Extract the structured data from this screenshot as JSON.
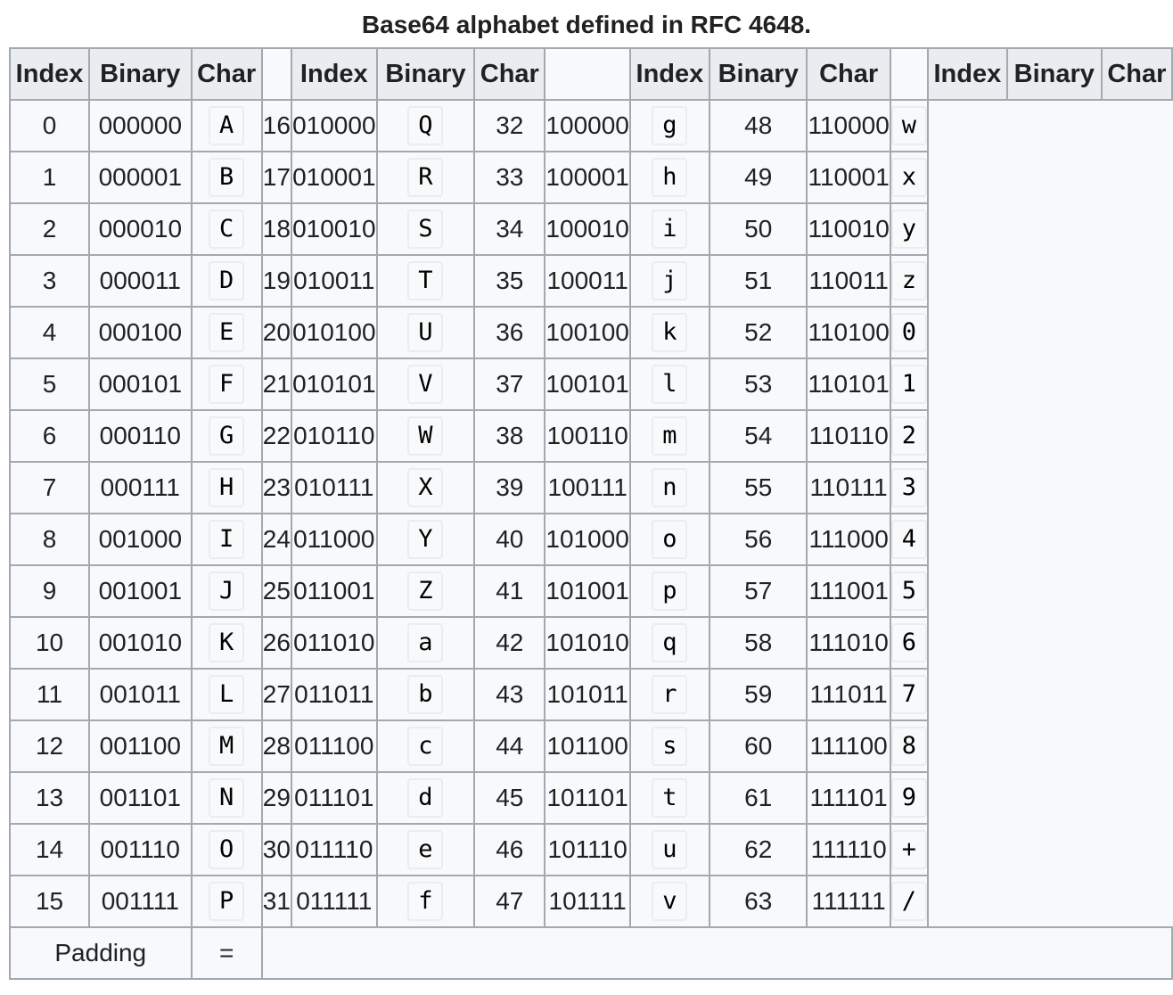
{
  "caption": "Base64 alphabet defined in RFC 4648.",
  "headers": {
    "index": "Index",
    "binary": "Binary",
    "char": "Char"
  },
  "rows": [
    [
      [
        "0",
        "000000",
        "A"
      ],
      [
        "16",
        "010000",
        "Q"
      ],
      [
        "32",
        "100000",
        "g"
      ],
      [
        "48",
        "110000",
        "w"
      ]
    ],
    [
      [
        "1",
        "000001",
        "B"
      ],
      [
        "17",
        "010001",
        "R"
      ],
      [
        "33",
        "100001",
        "h"
      ],
      [
        "49",
        "110001",
        "x"
      ]
    ],
    [
      [
        "2",
        "000010",
        "C"
      ],
      [
        "18",
        "010010",
        "S"
      ],
      [
        "34",
        "100010",
        "i"
      ],
      [
        "50",
        "110010",
        "y"
      ]
    ],
    [
      [
        "3",
        "000011",
        "D"
      ],
      [
        "19",
        "010011",
        "T"
      ],
      [
        "35",
        "100011",
        "j"
      ],
      [
        "51",
        "110011",
        "z"
      ]
    ],
    [
      [
        "4",
        "000100",
        "E"
      ],
      [
        "20",
        "010100",
        "U"
      ],
      [
        "36",
        "100100",
        "k"
      ],
      [
        "52",
        "110100",
        "0"
      ]
    ],
    [
      [
        "5",
        "000101",
        "F"
      ],
      [
        "21",
        "010101",
        "V"
      ],
      [
        "37",
        "100101",
        "l"
      ],
      [
        "53",
        "110101",
        "1"
      ]
    ],
    [
      [
        "6",
        "000110",
        "G"
      ],
      [
        "22",
        "010110",
        "W"
      ],
      [
        "38",
        "100110",
        "m"
      ],
      [
        "54",
        "110110",
        "2"
      ]
    ],
    [
      [
        "7",
        "000111",
        "H"
      ],
      [
        "23",
        "010111",
        "X"
      ],
      [
        "39",
        "100111",
        "n"
      ],
      [
        "55",
        "110111",
        "3"
      ]
    ],
    [
      [
        "8",
        "001000",
        "I"
      ],
      [
        "24",
        "011000",
        "Y"
      ],
      [
        "40",
        "101000",
        "o"
      ],
      [
        "56",
        "111000",
        "4"
      ]
    ],
    [
      [
        "9",
        "001001",
        "J"
      ],
      [
        "25",
        "011001",
        "Z"
      ],
      [
        "41",
        "101001",
        "p"
      ],
      [
        "57",
        "111001",
        "5"
      ]
    ],
    [
      [
        "10",
        "001010",
        "K"
      ],
      [
        "26",
        "011010",
        "a"
      ],
      [
        "42",
        "101010",
        "q"
      ],
      [
        "58",
        "111010",
        "6"
      ]
    ],
    [
      [
        "11",
        "001011",
        "L"
      ],
      [
        "27",
        "011011",
        "b"
      ],
      [
        "43",
        "101011",
        "r"
      ],
      [
        "59",
        "111011",
        "7"
      ]
    ],
    [
      [
        "12",
        "001100",
        "M"
      ],
      [
        "28",
        "011100",
        "c"
      ],
      [
        "44",
        "101100",
        "s"
      ],
      [
        "60",
        "111100",
        "8"
      ]
    ],
    [
      [
        "13",
        "001101",
        "N"
      ],
      [
        "29",
        "011101",
        "d"
      ],
      [
        "45",
        "101101",
        "t"
      ],
      [
        "61",
        "111101",
        "9"
      ]
    ],
    [
      [
        "14",
        "001110",
        "O"
      ],
      [
        "30",
        "011110",
        "e"
      ],
      [
        "46",
        "101110",
        "u"
      ],
      [
        "62",
        "111110",
        "+"
      ]
    ],
    [
      [
        "15",
        "001111",
        "P"
      ],
      [
        "31",
        "011111",
        "f"
      ],
      [
        "47",
        "101111",
        "v"
      ],
      [
        "63",
        "111111",
        "/"
      ]
    ]
  ],
  "padding": {
    "label": "Padding",
    "char": "="
  },
  "colors": {
    "header_bg": "#eaecf0",
    "cell_bg": "#f8f9fa",
    "border": "#a2a9b1",
    "text": "#202122"
  }
}
